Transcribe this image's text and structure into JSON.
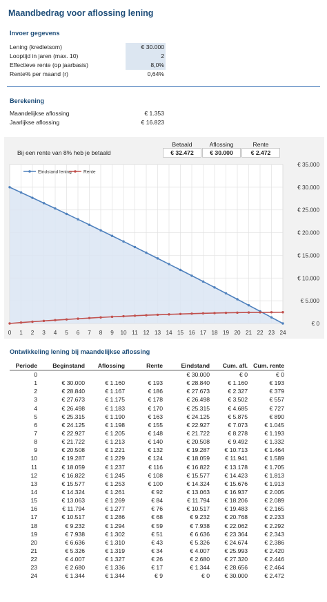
{
  "title": "Maandbedrag voor aflossing lening",
  "input": {
    "heading": "Invoer gegevens",
    "rows": [
      {
        "label": "Lening (kredietsom)",
        "value": "€ 30.000"
      },
      {
        "label": "Looptijd in jaren (max. 10)",
        "value": "2"
      },
      {
        "label": "Effectieve rente (op jaarbasis)",
        "value": "8,0%"
      },
      {
        "label": "Rente% per maand (r)",
        "value": "0,64%"
      }
    ]
  },
  "calc": {
    "heading": "Berekening",
    "rows": [
      {
        "label": "Maandelijkse aflossing",
        "value": "€ 1.353"
      },
      {
        "label": "Jaarlijkse aflossing",
        "value": "€ 16.823"
      }
    ]
  },
  "summary": {
    "label": "Bij een rente van 8% heb je betaald",
    "headers": [
      "Betaald",
      "Aflossing",
      "Rente"
    ],
    "values": [
      "€ 32.472",
      "€ 30.000",
      "€ 2.472"
    ]
  },
  "chart_data": {
    "type": "line",
    "x": [
      0,
      1,
      2,
      3,
      4,
      5,
      6,
      7,
      8,
      9,
      10,
      11,
      12,
      13,
      14,
      15,
      16,
      17,
      18,
      19,
      20,
      21,
      22,
      23,
      24
    ],
    "series": [
      {
        "name": "Eindstand lening",
        "color": "#4f81bd",
        "values": [
          30000,
          28840,
          27673,
          26498,
          25315,
          24125,
          22927,
          21722,
          20508,
          19287,
          18059,
          16822,
          15577,
          14324,
          13063,
          11794,
          10517,
          9232,
          7938,
          6636,
          5326,
          4007,
          2680,
          1344,
          0
        ]
      },
      {
        "name": "Rente",
        "color": "#c0504d",
        "values": [
          0,
          193,
          379,
          557,
          727,
          890,
          1045,
          1193,
          1332,
          1464,
          1589,
          1705,
          1813,
          1913,
          2005,
          2089,
          2165,
          2233,
          2292,
          2343,
          2386,
          2420,
          2446,
          2464,
          2472
        ]
      }
    ],
    "ylim": [
      0,
      35000
    ],
    "yticks": [
      "€ 0",
      "€ 5.000",
      "€ 10.000",
      "€ 15.000",
      "€ 20.000",
      "€ 25.000",
      "€ 30.000",
      "€ 35.000"
    ],
    "xticks": [
      "0",
      "1",
      "2",
      "3",
      "4",
      "5",
      "6",
      "7",
      "8",
      "9",
      "10",
      "11",
      "12",
      "13",
      "14",
      "15",
      "16",
      "17",
      "18",
      "19",
      "20",
      "21",
      "22",
      "23",
      "24"
    ],
    "legend": "top-left",
    "grid": true
  },
  "table": {
    "title": "Ontwikkeling lening bij maandelijkse aflossing",
    "headers": [
      "Periode",
      "Beginstand",
      "Aflossing",
      "Rente",
      "Eindstand",
      "Cum. afl.",
      "Cum. rente"
    ],
    "rows": [
      [
        "0",
        "",
        "",
        "",
        "€ 30.000",
        "€ 0",
        "€ 0"
      ],
      [
        "1",
        "€ 30.000",
        "€ 1.160",
        "€ 193",
        "€ 28.840",
        "€ 1.160",
        "€ 193"
      ],
      [
        "2",
        "€ 28.840",
        "€ 1.167",
        "€ 186",
        "€ 27.673",
        "€ 2.327",
        "€ 379"
      ],
      [
        "3",
        "€ 27.673",
        "€ 1.175",
        "€ 178",
        "€ 26.498",
        "€ 3.502",
        "€ 557"
      ],
      [
        "4",
        "€ 26.498",
        "€ 1.183",
        "€ 170",
        "€ 25.315",
        "€ 4.685",
        "€ 727"
      ],
      [
        "5",
        "€ 25.315",
        "€ 1.190",
        "€ 163",
        "€ 24.125",
        "€ 5.875",
        "€ 890"
      ],
      [
        "6",
        "€ 24.125",
        "€ 1.198",
        "€ 155",
        "€ 22.927",
        "€ 7.073",
        "€ 1.045"
      ],
      [
        "7",
        "€ 22.927",
        "€ 1.205",
        "€ 148",
        "€ 21.722",
        "€ 8.278",
        "€ 1.193"
      ],
      [
        "8",
        "€ 21.722",
        "€ 1.213",
        "€ 140",
        "€ 20.508",
        "€ 9.492",
        "€ 1.332"
      ],
      [
        "9",
        "€ 20.508",
        "€ 1.221",
        "€ 132",
        "€ 19.287",
        "€ 10.713",
        "€ 1.464"
      ],
      [
        "10",
        "€ 19.287",
        "€ 1.229",
        "€ 124",
        "€ 18.059",
        "€ 11.941",
        "€ 1.589"
      ],
      [
        "11",
        "€ 18.059",
        "€ 1.237",
        "€ 116",
        "€ 16.822",
        "€ 13.178",
        "€ 1.705"
      ],
      [
        "12",
        "€ 16.822",
        "€ 1.245",
        "€ 108",
        "€ 15.577",
        "€ 14.423",
        "€ 1.813"
      ],
      [
        "13",
        "€ 15.577",
        "€ 1.253",
        "€ 100",
        "€ 14.324",
        "€ 15.676",
        "€ 1.913"
      ],
      [
        "14",
        "€ 14.324",
        "€ 1.261",
        "€ 92",
        "€ 13.063",
        "€ 16.937",
        "€ 2.005"
      ],
      [
        "15",
        "€ 13.063",
        "€ 1.269",
        "€ 84",
        "€ 11.794",
        "€ 18.206",
        "€ 2.089"
      ],
      [
        "16",
        "€ 11.794",
        "€ 1.277",
        "€ 76",
        "€ 10.517",
        "€ 19.483",
        "€ 2.165"
      ],
      [
        "17",
        "€ 10.517",
        "€ 1.286",
        "€ 68",
        "€ 9.232",
        "€ 20.768",
        "€ 2.233"
      ],
      [
        "18",
        "€ 9.232",
        "€ 1.294",
        "€ 59",
        "€ 7.938",
        "€ 22.062",
        "€ 2.292"
      ],
      [
        "19",
        "€ 7.938",
        "€ 1.302",
        "€ 51",
        "€ 6.636",
        "€ 23.364",
        "€ 2.343"
      ],
      [
        "20",
        "€ 6.636",
        "€ 1.310",
        "€ 43",
        "€ 5.326",
        "€ 24.674",
        "€ 2.386"
      ],
      [
        "21",
        "€ 5.326",
        "€ 1.319",
        "€ 34",
        "€ 4.007",
        "€ 25.993",
        "€ 2.420"
      ],
      [
        "22",
        "€ 4.007",
        "€ 1.327",
        "€ 26",
        "€ 2.680",
        "€ 27.320",
        "€ 2.446"
      ],
      [
        "23",
        "€ 2.680",
        "€ 1.336",
        "€ 17",
        "€ 1.344",
        "€ 28.656",
        "€ 2.464"
      ],
      [
        "24",
        "€ 1.344",
        "€ 1.344",
        "€ 9",
        "€ 0",
        "€ 30.000",
        "€ 2.472"
      ]
    ]
  }
}
